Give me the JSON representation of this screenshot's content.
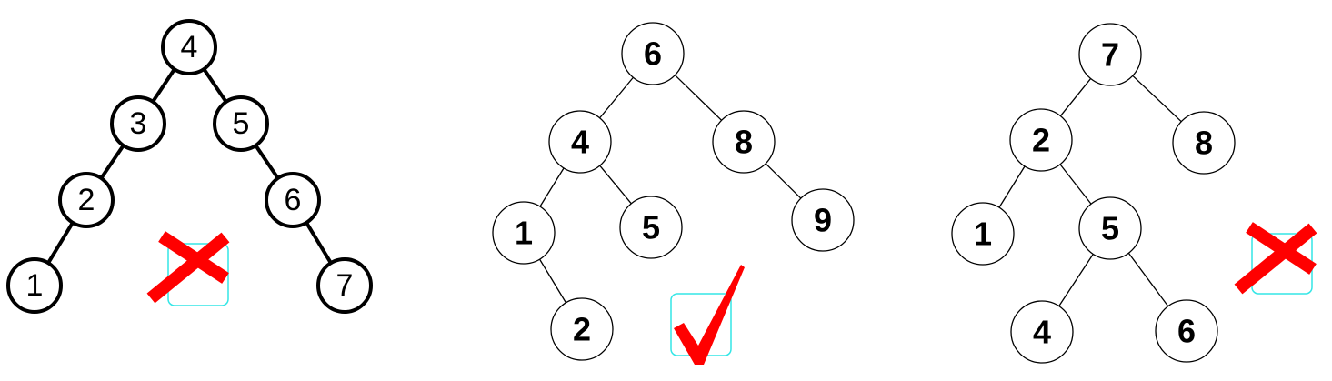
{
  "trees": [
    {
      "id": "tree-1",
      "style": "thick-outline",
      "verdict": "invalid",
      "verdict_mark": "x-mark",
      "nodes": [
        {
          "id": "n4",
          "label": "4"
        },
        {
          "id": "n3",
          "label": "3"
        },
        {
          "id": "n5",
          "label": "5"
        },
        {
          "id": "n2",
          "label": "2"
        },
        {
          "id": "n6",
          "label": "6"
        },
        {
          "id": "n1",
          "label": "1"
        },
        {
          "id": "n7",
          "label": "7"
        }
      ],
      "edges": [
        [
          "n4",
          "n3"
        ],
        [
          "n4",
          "n5"
        ],
        [
          "n3",
          "n2"
        ],
        [
          "n5",
          "n6"
        ],
        [
          "n2",
          "n1"
        ],
        [
          "n6",
          "n7"
        ]
      ]
    },
    {
      "id": "tree-2",
      "style": "thin-outline-bold-text",
      "verdict": "valid",
      "verdict_mark": "check-mark",
      "nodes": [
        {
          "id": "m6",
          "label": "6"
        },
        {
          "id": "m4",
          "label": "4"
        },
        {
          "id": "m8",
          "label": "8"
        },
        {
          "id": "m1",
          "label": "1"
        },
        {
          "id": "m5",
          "label": "5"
        },
        {
          "id": "m9",
          "label": "9"
        },
        {
          "id": "m2",
          "label": "2"
        }
      ],
      "edges": [
        [
          "m6",
          "m4"
        ],
        [
          "m6",
          "m8"
        ],
        [
          "m4",
          "m1"
        ],
        [
          "m4",
          "m5"
        ],
        [
          "m8",
          "m9"
        ],
        [
          "m1",
          "m2"
        ]
      ]
    },
    {
      "id": "tree-3",
      "style": "thin-outline-bold-text",
      "verdict": "invalid",
      "verdict_mark": "x-mark",
      "nodes": [
        {
          "id": "k7",
          "label": "7"
        },
        {
          "id": "k2",
          "label": "2"
        },
        {
          "id": "k8",
          "label": "8"
        },
        {
          "id": "k1",
          "label": "1"
        },
        {
          "id": "k5",
          "label": "5"
        },
        {
          "id": "k4",
          "label": "4"
        },
        {
          "id": "k6",
          "label": "6"
        }
      ],
      "edges": [
        [
          "k7",
          "k2"
        ],
        [
          "k7",
          "k8"
        ],
        [
          "k2",
          "k1"
        ],
        [
          "k2",
          "k5"
        ],
        [
          "k5",
          "k4"
        ],
        [
          "k5",
          "k6"
        ]
      ]
    }
  ],
  "colors": {
    "node_stroke": "#000000",
    "node_fill": "#ffffff",
    "mark_red": "#ff0000",
    "mark_box": "#33e6e6"
  }
}
